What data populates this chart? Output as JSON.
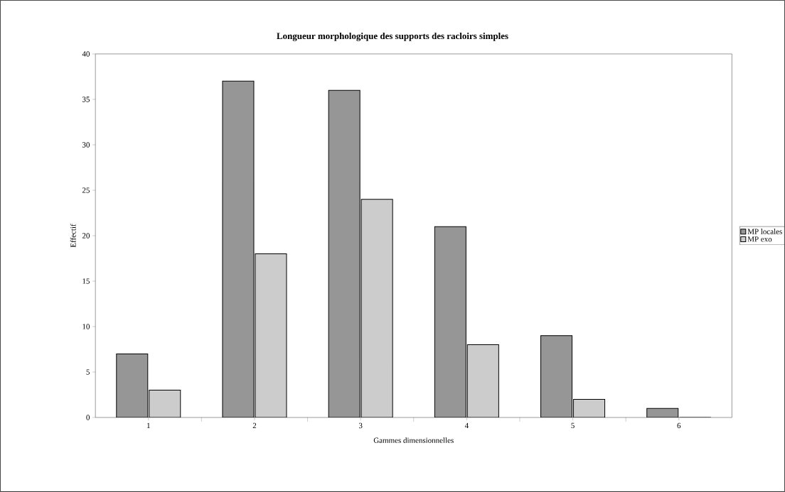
{
  "chart_data": {
    "type": "bar",
    "title": "Longueur morphologique des supports des racloirs simples",
    "xlabel": "Gammes dimensionnelles",
    "ylabel": "Effectif",
    "categories": [
      "1",
      "2",
      "3",
      "4",
      "5",
      "6"
    ],
    "series": [
      {
        "name": "MP locales",
        "color": "#969696",
        "values": [
          7,
          37,
          36,
          21,
          9,
          1
        ]
      },
      {
        "name": "MP exo",
        "color": "#cccccc",
        "values": [
          3,
          18,
          24,
          8,
          2,
          0
        ]
      }
    ],
    "ylim": [
      0,
      40
    ],
    "yticks": [
      0,
      5,
      10,
      15,
      20,
      25,
      30,
      35,
      40
    ],
    "grid": false,
    "legend": "right"
  }
}
